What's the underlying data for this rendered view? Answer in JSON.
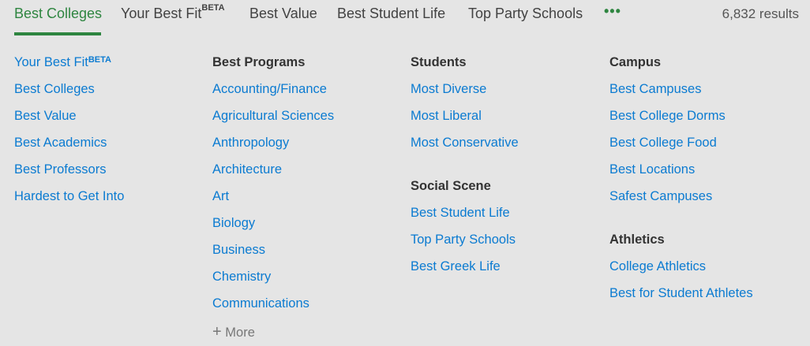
{
  "tabs": [
    {
      "label": "Best Colleges",
      "active": true
    },
    {
      "label": "Your Best Fit",
      "badge": "BETA"
    },
    {
      "label": "Best Value"
    },
    {
      "label": "Best Student Life"
    },
    {
      "label": "Top Party Schools"
    }
  ],
  "more_tabs_icon": "ellipsis-icon",
  "results": "6,832 results",
  "colors": {
    "accent": "#2e8540",
    "link": "#0b7bd1",
    "background": "#e5e5e5"
  },
  "col1": {
    "items": [
      {
        "label": "Your Best Fit",
        "badge": "BETA"
      },
      {
        "label": "Best Colleges"
      },
      {
        "label": "Best Value"
      },
      {
        "label": "Best Academics"
      },
      {
        "label": "Best Professors"
      },
      {
        "label": "Hardest to Get Into"
      }
    ]
  },
  "col2": {
    "heading": "Best Programs",
    "items": [
      "Accounting/Finance",
      "Agricultural Sciences",
      "Anthropology",
      "Architecture",
      "Art",
      "Biology",
      "Business",
      "Chemistry",
      "Communications"
    ],
    "more": "More",
    "more_icon": "plus-icon"
  },
  "col3": {
    "students": {
      "heading": "Students",
      "items": [
        "Most Diverse",
        "Most Liberal",
        "Most Conservative"
      ]
    },
    "social": {
      "heading": "Social Scene",
      "items": [
        "Best Student Life",
        "Top Party Schools",
        "Best Greek Life"
      ]
    }
  },
  "col4": {
    "campus": {
      "heading": "Campus",
      "items": [
        "Best Campuses",
        "Best College Dorms",
        "Best College Food",
        "Best Locations",
        "Safest Campuses"
      ]
    },
    "athletics": {
      "heading": "Athletics",
      "items": [
        "College Athletics",
        "Best for Student Athletes"
      ]
    }
  }
}
